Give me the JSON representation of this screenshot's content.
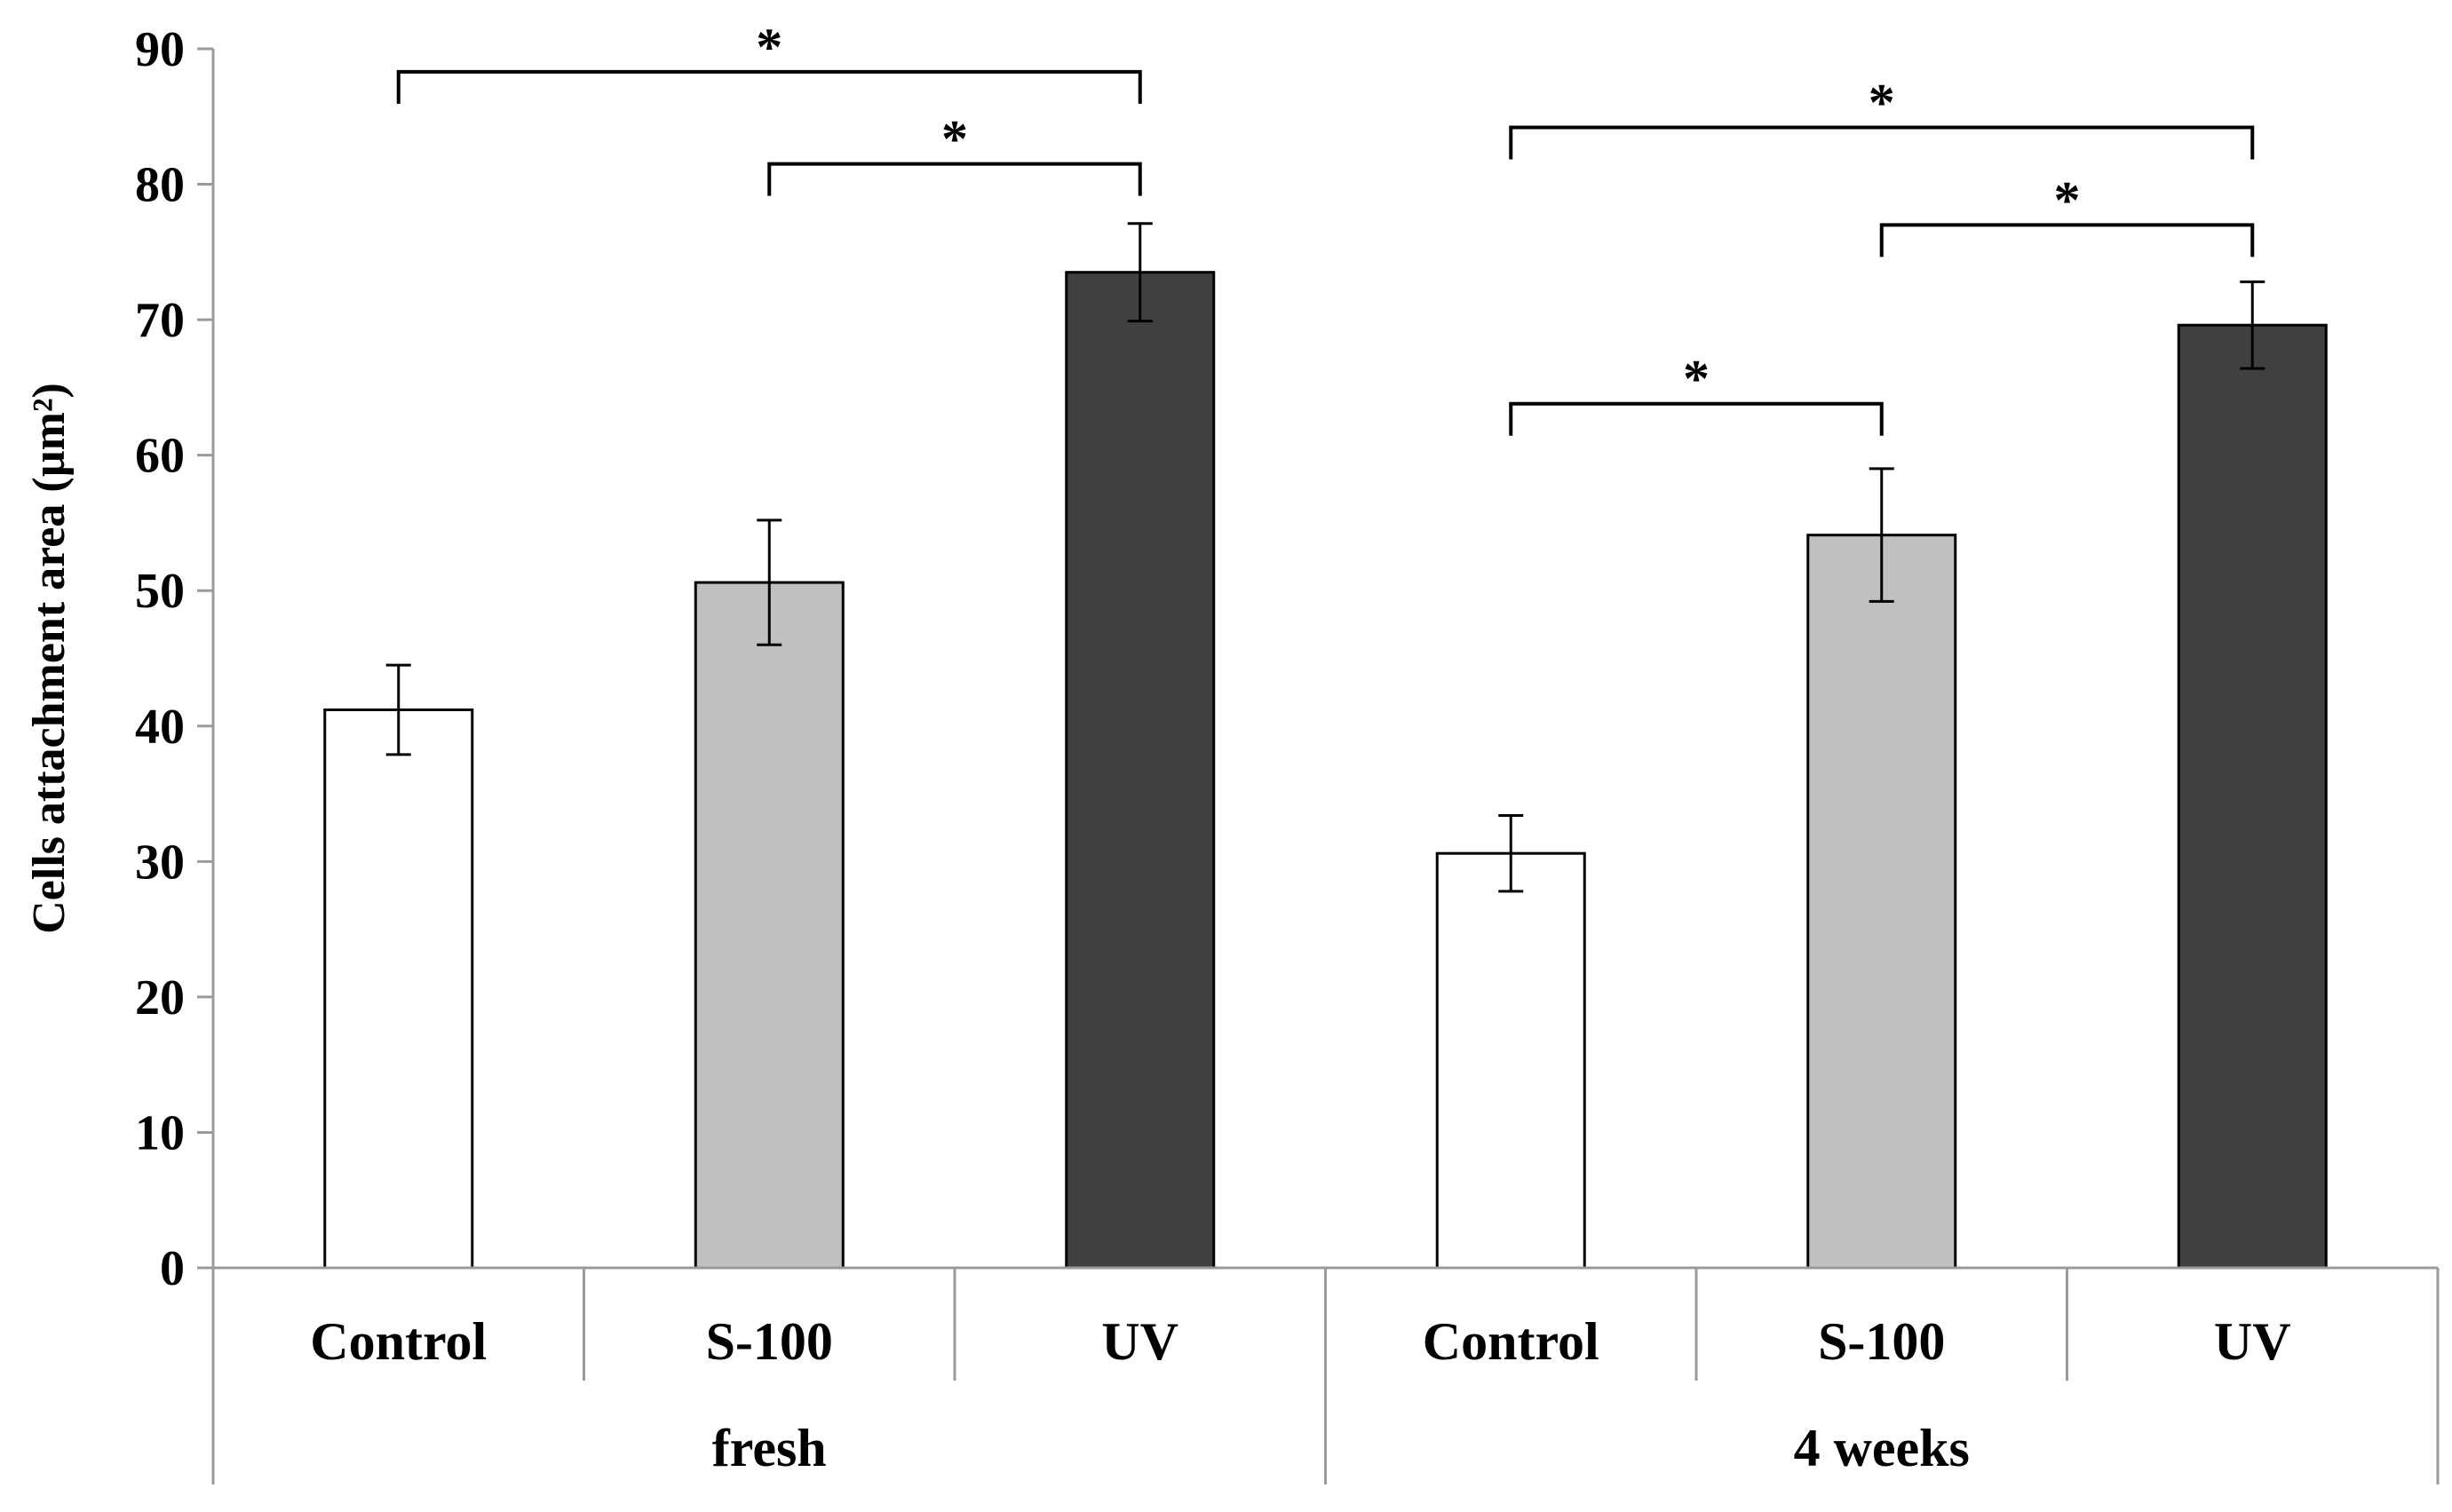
{
  "chart_data": {
    "type": "bar",
    "title": "",
    "ylabel": "Cells attachment area (µm²)",
    "xlabel": "",
    "ylim": [
      0,
      90
    ],
    "yticks": [
      0,
      10,
      20,
      30,
      40,
      50,
      60,
      70,
      80,
      90
    ],
    "grid": false,
    "groups": [
      {
        "name": "fresh",
        "bars": [
          {
            "category": "Control",
            "value": 41.2,
            "error": 3.3,
            "color": "#ffffff"
          },
          {
            "category": "S-100",
            "value": 50.6,
            "error": 4.6,
            "color": "#c0c0c0"
          },
          {
            "category": "UV",
            "value": 73.5,
            "error": 3.6,
            "color": "#404040"
          }
        ]
      },
      {
        "name": "4 weeks",
        "bars": [
          {
            "category": "Control",
            "value": 30.6,
            "error": 2.8,
            "color": "#ffffff"
          },
          {
            "category": "S-100",
            "value": 54.1,
            "error": 4.9,
            "color": "#c0c0c0"
          },
          {
            "category": "UV",
            "value": 69.6,
            "error": 3.2,
            "color": "#404040"
          }
        ]
      }
    ],
    "significance": [
      {
        "from": [
          0,
          0
        ],
        "to": [
          0,
          2
        ],
        "y": 88.3,
        "label": "*"
      },
      {
        "from": [
          0,
          1
        ],
        "to": [
          0,
          2
        ],
        "y": 81.5,
        "label": "*"
      },
      {
        "from": [
          1,
          0
        ],
        "to": [
          1,
          2
        ],
        "y": 84.2,
        "label": "*"
      },
      {
        "from": [
          1,
          1
        ],
        "to": [
          1,
          2
        ],
        "y": 77.0,
        "label": "*"
      },
      {
        "from": [
          1,
          0
        ],
        "to": [
          1,
          1
        ],
        "y": 63.8,
        "label": "*"
      }
    ]
  }
}
